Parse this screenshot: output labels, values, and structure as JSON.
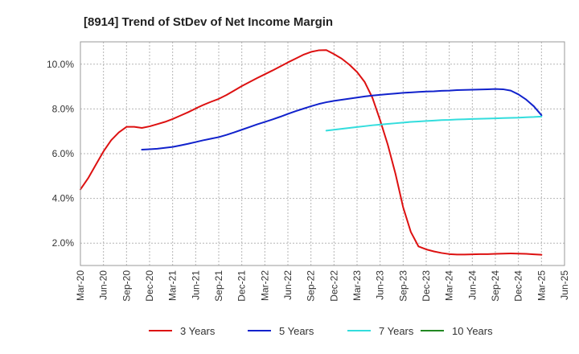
{
  "title": "[8914]  Trend of StDev of Net Income Margin",
  "chart_data": {
    "type": "line",
    "title": "[8914]  Trend of StDev of Net Income Margin",
    "xlabel": "",
    "ylabel": "",
    "x_ticks": [
      "Mar-20",
      "Jun-20",
      "Sep-20",
      "Dec-20",
      "Mar-21",
      "Jun-21",
      "Sep-21",
      "Dec-21",
      "Mar-22",
      "Jun-22",
      "Sep-22",
      "Dec-22",
      "Mar-23",
      "Jun-23",
      "Sep-23",
      "Dec-23",
      "Mar-24",
      "Jun-24",
      "Sep-24",
      "Dec-24",
      "Mar-25",
      "Jun-25"
    ],
    "y_ticks": [
      "2.0%",
      "4.0%",
      "6.0%",
      "8.0%",
      "10.0%"
    ],
    "y_tick_values": [
      2,
      4,
      6,
      8,
      10
    ],
    "ylim": [
      1.0,
      11.0
    ],
    "grid": true,
    "legend_position": "bottom",
    "series": [
      {
        "name": "3 Years",
        "color": "#dd1111",
        "points": [
          [
            "Mar-20",
            4.4
          ],
          [
            "Apr-20",
            4.9
          ],
          [
            "May-20",
            5.5
          ],
          [
            "Jun-20",
            6.1
          ],
          [
            "Jul-20",
            6.6
          ],
          [
            "Aug-20",
            6.95
          ],
          [
            "Sep-20",
            7.2
          ],
          [
            "Oct-20",
            7.2
          ],
          [
            "Nov-20",
            7.15
          ],
          [
            "Dec-20",
            7.22
          ],
          [
            "Jan-21",
            7.32
          ],
          [
            "Feb-21",
            7.42
          ],
          [
            "Mar-21",
            7.55
          ],
          [
            "Apr-21",
            7.7
          ],
          [
            "May-21",
            7.85
          ],
          [
            "Jun-21",
            8.02
          ],
          [
            "Jul-21",
            8.18
          ],
          [
            "Aug-21",
            8.32
          ],
          [
            "Sep-21",
            8.45
          ],
          [
            "Oct-21",
            8.62
          ],
          [
            "Nov-21",
            8.82
          ],
          [
            "Dec-21",
            9.02
          ],
          [
            "Jan-22",
            9.2
          ],
          [
            "Feb-22",
            9.38
          ],
          [
            "Mar-22",
            9.55
          ],
          [
            "Apr-22",
            9.72
          ],
          [
            "May-22",
            9.9
          ],
          [
            "Jun-22",
            10.08
          ],
          [
            "Jul-22",
            10.25
          ],
          [
            "Aug-22",
            10.42
          ],
          [
            "Sep-22",
            10.55
          ],
          [
            "Oct-22",
            10.62
          ],
          [
            "Nov-22",
            10.63
          ],
          [
            "Dec-22",
            10.45
          ],
          [
            "Jan-23",
            10.25
          ],
          [
            "Feb-23",
            9.98
          ],
          [
            "Mar-23",
            9.65
          ],
          [
            "Apr-23",
            9.2
          ],
          [
            "May-23",
            8.5
          ],
          [
            "Jun-23",
            7.5
          ],
          [
            "Jul-23",
            6.4
          ],
          [
            "Aug-23",
            5.1
          ],
          [
            "Sep-23",
            3.6
          ],
          [
            "Oct-23",
            2.5
          ],
          [
            "Nov-23",
            1.85
          ],
          [
            "Dec-23",
            1.72
          ],
          [
            "Jan-24",
            1.63
          ],
          [
            "Feb-24",
            1.56
          ],
          [
            "Mar-24",
            1.51
          ],
          [
            "Apr-24",
            1.49
          ],
          [
            "May-24",
            1.49
          ],
          [
            "Jun-24",
            1.5
          ],
          [
            "Jul-24",
            1.51
          ],
          [
            "Aug-24",
            1.51
          ],
          [
            "Sep-24",
            1.52
          ],
          [
            "Oct-24",
            1.53
          ],
          [
            "Nov-24",
            1.54
          ],
          [
            "Dec-24",
            1.53
          ],
          [
            "Jan-25",
            1.52
          ],
          [
            "Feb-25",
            1.5
          ],
          [
            "Mar-25",
            1.48
          ]
        ]
      },
      {
        "name": "5 Years",
        "color": "#1122cc",
        "points": [
          [
            "Nov-20",
            6.18
          ],
          [
            "Dec-20",
            6.2
          ],
          [
            "Jan-21",
            6.22
          ],
          [
            "Feb-21",
            6.26
          ],
          [
            "Mar-21",
            6.3
          ],
          [
            "Apr-21",
            6.37
          ],
          [
            "May-21",
            6.44
          ],
          [
            "Jun-21",
            6.52
          ],
          [
            "Jul-21",
            6.6
          ],
          [
            "Aug-21",
            6.67
          ],
          [
            "Sep-21",
            6.74
          ],
          [
            "Oct-21",
            6.84
          ],
          [
            "Nov-21",
            6.95
          ],
          [
            "Dec-21",
            7.07
          ],
          [
            "Jan-22",
            7.19
          ],
          [
            "Feb-22",
            7.31
          ],
          [
            "Mar-22",
            7.42
          ],
          [
            "Apr-22",
            7.53
          ],
          [
            "May-22",
            7.65
          ],
          [
            "Jun-22",
            7.78
          ],
          [
            "Jul-22",
            7.9
          ],
          [
            "Aug-22",
            8.01
          ],
          [
            "Sep-22",
            8.12
          ],
          [
            "Oct-22",
            8.22
          ],
          [
            "Nov-22",
            8.3
          ],
          [
            "Dec-22",
            8.36
          ],
          [
            "Jan-23",
            8.41
          ],
          [
            "Feb-23",
            8.46
          ],
          [
            "Mar-23",
            8.51
          ],
          [
            "Apr-23",
            8.56
          ],
          [
            "May-23",
            8.6
          ],
          [
            "Jun-23",
            8.63
          ],
          [
            "Jul-23",
            8.66
          ],
          [
            "Aug-23",
            8.69
          ],
          [
            "Sep-23",
            8.72
          ],
          [
            "Oct-23",
            8.74
          ],
          [
            "Nov-23",
            8.76
          ],
          [
            "Dec-23",
            8.78
          ],
          [
            "Jan-24",
            8.79
          ],
          [
            "Feb-24",
            8.81
          ],
          [
            "Mar-24",
            8.82
          ],
          [
            "Apr-24",
            8.84
          ],
          [
            "May-24",
            8.85
          ],
          [
            "Jun-24",
            8.86
          ],
          [
            "Jul-24",
            8.87
          ],
          [
            "Aug-24",
            8.88
          ],
          [
            "Sep-24",
            8.89
          ],
          [
            "Oct-24",
            8.88
          ],
          [
            "Nov-24",
            8.82
          ],
          [
            "Dec-24",
            8.65
          ],
          [
            "Jan-25",
            8.42
          ],
          [
            "Feb-25",
            8.12
          ],
          [
            "Mar-25",
            7.72
          ]
        ]
      },
      {
        "name": "7 Years",
        "color": "#33dddd",
        "points": [
          [
            "Nov-22",
            7.03
          ],
          [
            "Dec-22",
            7.07
          ],
          [
            "Jan-23",
            7.11
          ],
          [
            "Feb-23",
            7.15
          ],
          [
            "Mar-23",
            7.19
          ],
          [
            "Apr-23",
            7.23
          ],
          [
            "May-23",
            7.27
          ],
          [
            "Jun-23",
            7.3
          ],
          [
            "Jul-23",
            7.33
          ],
          [
            "Aug-23",
            7.36
          ],
          [
            "Sep-23",
            7.39
          ],
          [
            "Oct-23",
            7.42
          ],
          [
            "Nov-23",
            7.44
          ],
          [
            "Dec-23",
            7.46
          ],
          [
            "Jan-24",
            7.48
          ],
          [
            "Feb-24",
            7.5
          ],
          [
            "Mar-24",
            7.51
          ],
          [
            "Apr-24",
            7.53
          ],
          [
            "May-24",
            7.54
          ],
          [
            "Jun-24",
            7.55
          ],
          [
            "Jul-24",
            7.56
          ],
          [
            "Aug-24",
            7.57
          ],
          [
            "Sep-24",
            7.58
          ],
          [
            "Oct-24",
            7.59
          ],
          [
            "Nov-24",
            7.6
          ],
          [
            "Dec-24",
            7.61
          ],
          [
            "Jan-25",
            7.63
          ],
          [
            "Feb-25",
            7.64
          ],
          [
            "Mar-25",
            7.66
          ]
        ]
      },
      {
        "name": "10 Years",
        "color": "#228822",
        "points": []
      }
    ]
  }
}
